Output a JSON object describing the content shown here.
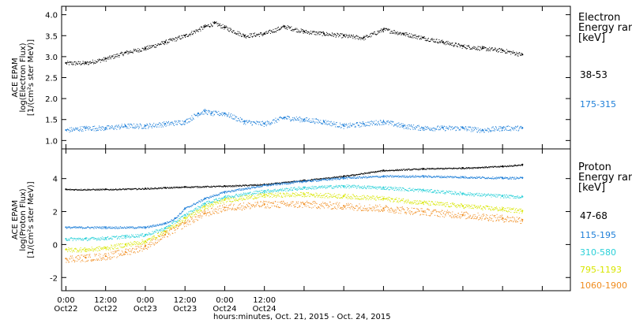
{
  "chart_data": [
    {
      "type": "scatter",
      "panel": "electron",
      "ylabel_lines": [
        "ACE EPAM",
        "log(Electron Flux)",
        "[1/(cm²s ster MeV)]"
      ],
      "ylim": [
        0.8,
        4.2
      ],
      "yticks": [
        1.0,
        1.5,
        2.0,
        2.5,
        3.0,
        3.5,
        4.0
      ],
      "ytick_labels": [
        "1.0",
        "1.5",
        "2.0",
        "2.5",
        "3.0",
        "3.5",
        "4.0"
      ],
      "legend_title": "Electron\nEnergy ranges\n[keV]",
      "series": [
        {
          "name": "38-53",
          "color": "#000000",
          "x_hours": [
            0,
            6,
            12,
            18,
            24,
            30,
            36,
            42,
            45,
            48,
            54,
            60,
            66,
            72,
            78,
            84,
            90,
            96,
            102,
            108,
            114,
            120,
            126,
            132,
            138
          ],
          "y": [
            2.85,
            2.85,
            2.95,
            3.1,
            3.2,
            3.35,
            3.5,
            3.72,
            3.8,
            3.7,
            3.5,
            3.55,
            3.72,
            3.6,
            3.55,
            3.5,
            3.45,
            3.65,
            3.55,
            3.45,
            3.35,
            3.25,
            3.2,
            3.15,
            3.05
          ],
          "noise": 0.05
        },
        {
          "name": "175-315",
          "color": "#1e7fd8",
          "x_hours": [
            0,
            6,
            12,
            18,
            24,
            30,
            36,
            40,
            42,
            44,
            48,
            54,
            60,
            66,
            72,
            78,
            84,
            90,
            96,
            102,
            108,
            114,
            120,
            126,
            132,
            138
          ],
          "y": [
            1.25,
            1.3,
            1.3,
            1.35,
            1.35,
            1.4,
            1.45,
            1.65,
            1.7,
            1.65,
            1.65,
            1.45,
            1.4,
            1.55,
            1.5,
            1.45,
            1.35,
            1.4,
            1.45,
            1.35,
            1.3,
            1.3,
            1.3,
            1.25,
            1.3,
            1.3
          ],
          "noise": 0.06
        }
      ]
    },
    {
      "type": "scatter",
      "panel": "proton",
      "ylabel_lines": [
        "ACE EPAM",
        "log(Proton Flux)",
        "[1/(cm²s ster MeV)]"
      ],
      "ylim": [
        -2.8,
        5.8
      ],
      "yticks": [
        -2,
        0,
        2,
        4
      ],
      "ytick_labels": [
        "-2",
        "0",
        "2",
        "4"
      ],
      "legend_title": "Proton\nEnergy ranges\n[keV]",
      "series": [
        {
          "name": "47-68",
          "color": "#000000",
          "x_hours": [
            0,
            12,
            24,
            30,
            36,
            48,
            60,
            72,
            84,
            96,
            108,
            120,
            132,
            138
          ],
          "y": [
            3.35,
            3.35,
            3.4,
            3.45,
            3.5,
            3.55,
            3.65,
            3.9,
            4.15,
            4.5,
            4.6,
            4.65,
            4.75,
            4.85
          ],
          "noise": 0.04
        },
        {
          "name": "115-195",
          "color": "#1e7fd8",
          "x_hours": [
            0,
            12,
            24,
            30,
            33,
            36,
            42,
            48,
            60,
            72,
            84,
            96,
            108,
            120,
            132,
            138
          ],
          "y": [
            1.05,
            1.05,
            1.05,
            1.3,
            1.6,
            2.2,
            2.8,
            3.2,
            3.6,
            3.85,
            4.05,
            4.15,
            4.15,
            4.1,
            4.05,
            4.05
          ],
          "noise": 0.06
        },
        {
          "name": "310-580",
          "color": "#2ad0d8",
          "x_hours": [
            0,
            6,
            12,
            18,
            24,
            30,
            36,
            42,
            48,
            60,
            72,
            84,
            96,
            108,
            120,
            132,
            138
          ],
          "y": [
            0.35,
            0.35,
            0.4,
            0.5,
            0.6,
            1.0,
            1.8,
            2.5,
            2.9,
            3.25,
            3.45,
            3.55,
            3.45,
            3.3,
            3.1,
            2.95,
            2.9
          ],
          "noise": 0.1
        },
        {
          "name": "795-1193",
          "color": "#d8e600",
          "x_hours": [
            0,
            6,
            12,
            18,
            24,
            30,
            36,
            42,
            48,
            60,
            72,
            84,
            96,
            108,
            120,
            132,
            138
          ],
          "y": [
            -0.3,
            -0.3,
            -0.2,
            0.0,
            0.2,
            0.8,
            1.6,
            2.3,
            2.7,
            3.0,
            3.05,
            2.95,
            2.8,
            2.55,
            2.35,
            2.15,
            2.05
          ],
          "noise": 0.14
        },
        {
          "name": "1060-1900",
          "color": "#f08c1e",
          "x_hours": [
            0,
            6,
            12,
            18,
            24,
            30,
            36,
            42,
            48,
            60,
            72,
            84,
            96,
            108,
            120,
            132,
            138
          ],
          "y": [
            -0.85,
            -0.8,
            -0.7,
            -0.45,
            -0.1,
            0.6,
            1.3,
            1.9,
            2.25,
            2.45,
            2.45,
            2.35,
            2.2,
            2.0,
            1.8,
            1.6,
            1.5
          ],
          "noise": 0.22
        }
      ]
    }
  ],
  "x_axis": {
    "range_hours": [
      -1.3,
      152.5
    ],
    "ticks_hours": [
      0,
      12,
      24,
      36,
      48,
      60,
      72,
      84,
      96,
      108,
      120,
      132,
      144
    ],
    "labeled_ticks": [
      {
        "hour": 0,
        "time": "0:00",
        "date": "Oct22"
      },
      {
        "hour": 12,
        "time": "12:00",
        "date": "Oct22"
      },
      {
        "hour": 24,
        "time": "0:00",
        "date": "Oct23"
      },
      {
        "hour": 36,
        "time": "12:00",
        "date": "Oct23"
      },
      {
        "hour": 48,
        "time": "0:00",
        "date": "Oct24"
      },
      {
        "hour": 60,
        "time": "12:00",
        "date": "Oct24"
      }
    ],
    "label": "hours:minutes, Oct. 21, 2015 - Oct. 24, 2015"
  }
}
